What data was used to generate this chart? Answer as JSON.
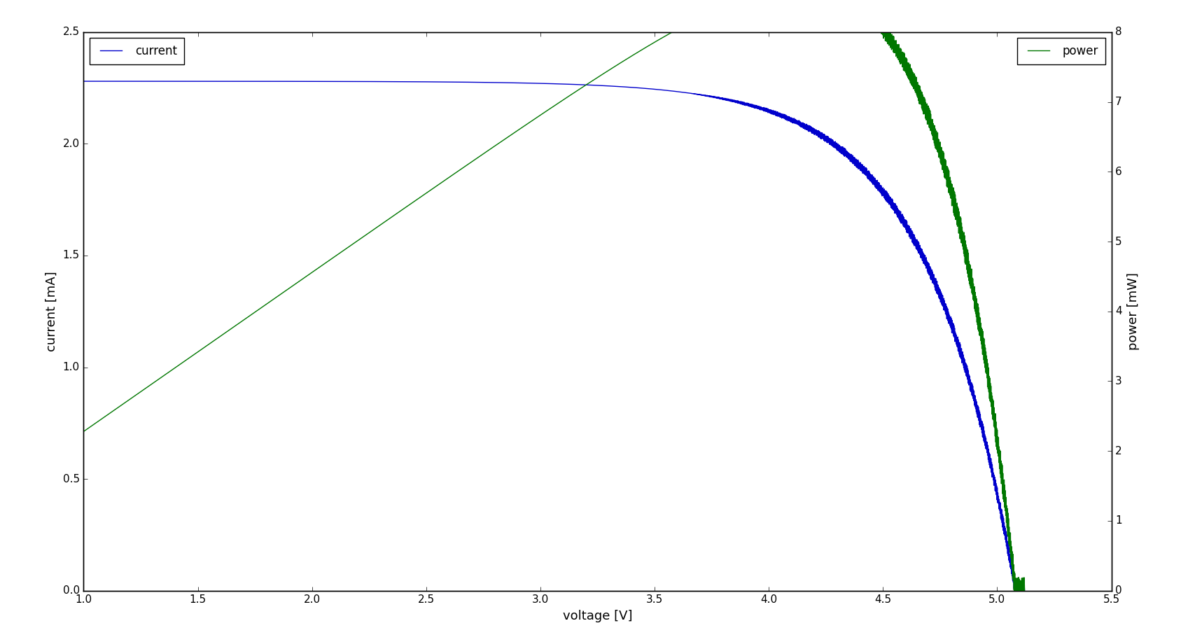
{
  "title": "",
  "xlabel": "voltage [V]",
  "ylabel_left": "current [mA]",
  "ylabel_right": "power [mW]",
  "xlim": [
    1.0,
    5.5
  ],
  "ylim_left": [
    0.0,
    2.5
  ],
  "ylim_right": [
    0.0,
    8.0
  ],
  "xticks": [
    1.0,
    1.5,
    2.0,
    2.5,
    3.0,
    3.5,
    4.0,
    4.5,
    5.0,
    5.5
  ],
  "yticks_left": [
    0.0,
    0.5,
    1.0,
    1.5,
    2.0,
    2.5
  ],
  "yticks_right": [
    0,
    1,
    2,
    3,
    4,
    5,
    6,
    7,
    8
  ],
  "current_color": "#0000cc",
  "power_color": "#007700",
  "legend_current_label": "current",
  "legend_power_label": "power",
  "figsize": [
    17.07,
    9.17
  ],
  "dpi": 100,
  "Isc": 2.28,
  "Voc": 5.08,
  "Vt": 0.38,
  "noise_start_v": 3.65,
  "noise_amplitude": 0.025,
  "noise_freq": 60
}
